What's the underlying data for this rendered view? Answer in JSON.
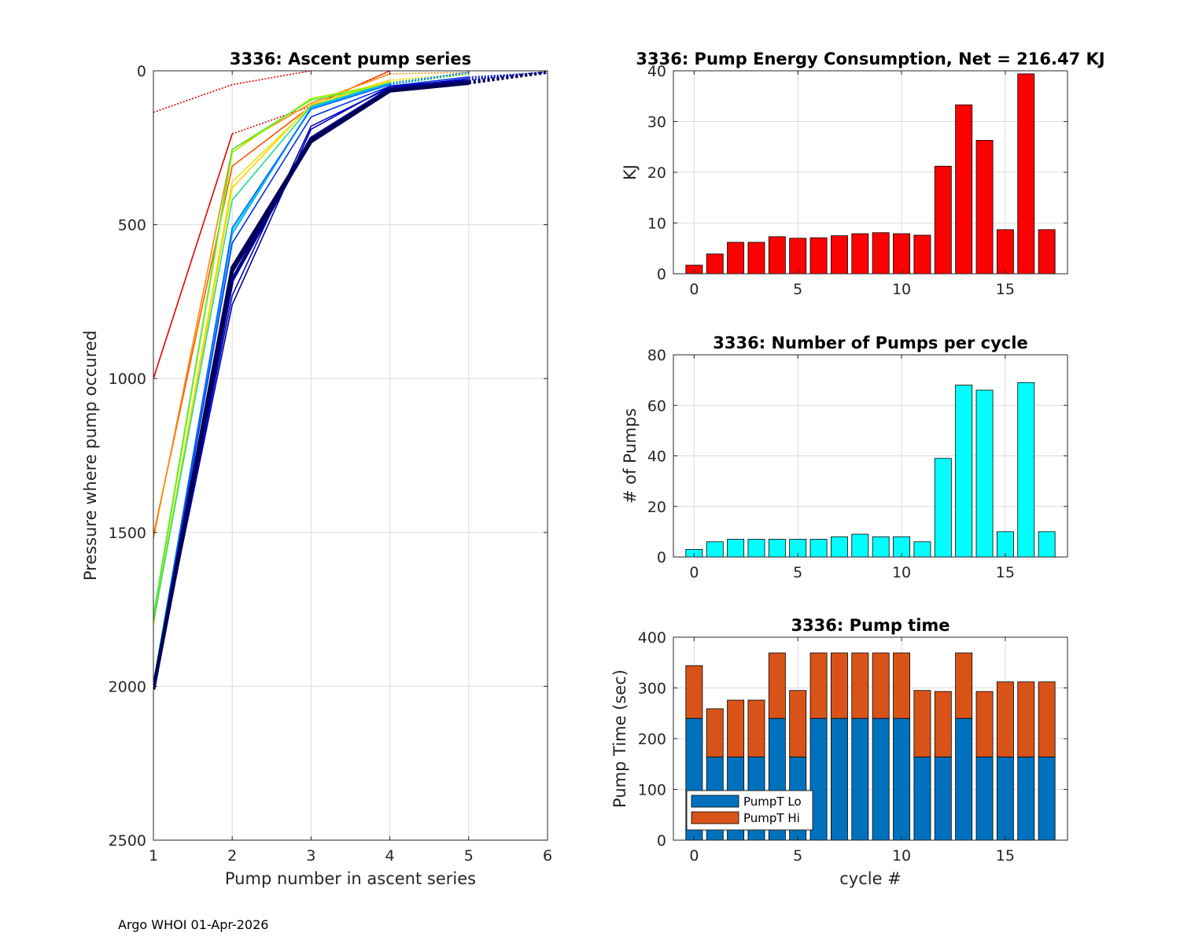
{
  "footer": "Argo WHOI 01-Apr-2026",
  "colors": {
    "energy_bar": "#ff0000",
    "pumps_bar": "#00ffff",
    "pumpt_lo": "#0072bd",
    "pumpt_hi": "#d95319",
    "navy": "#000066"
  },
  "chart_data": [
    {
      "id": "ascent",
      "type": "line",
      "title": "3336: Ascent pump series",
      "xlabel": "Pump number in ascent series",
      "ylabel": "Pressure where pump occured",
      "xlim": [
        1,
        6
      ],
      "ylim": [
        0,
        2500
      ],
      "y_reversed": true,
      "xticks": [
        "1",
        "2",
        "3",
        "4",
        "5",
        "6"
      ],
      "yticks": [
        "0",
        "500",
        "1000",
        "1500",
        "2000",
        "2500"
      ],
      "series": [
        {
          "name": "cycle 0",
          "color": "#e60000",
          "solid": [
            1000,
            205
          ],
          "dotted": [
            205,
            115,
            0
          ]
        },
        {
          "name": "cycle 1",
          "color": "#e60000",
          "solid": [
            135
          ],
          "dotted": [
            135,
            45,
            0
          ]
        },
        {
          "name": "cycle 2",
          "color": "#ff5500",
          "solid": [
            1510,
            310,
            115
          ],
          "dotted": [
            115,
            0
          ]
        },
        {
          "name": "cycle 3",
          "color": "#ff8800",
          "solid": [
            1520,
            255,
            105,
            10
          ],
          "dotted": [
            10,
            5
          ]
        },
        {
          "name": "cycle 4",
          "color": "#ffd000",
          "solid": [
            1800,
            380,
            110,
            30
          ],
          "dotted": [
            30,
            10
          ]
        },
        {
          "name": "cycle 5",
          "color": "#e6e600",
          "solid": [
            1790,
            360,
            115,
            35
          ],
          "dotted": [
            35,
            10
          ]
        },
        {
          "name": "cycle 6",
          "color": "#aaee00",
          "solid": [
            1780,
            265,
            90,
            40
          ],
          "dotted": [
            40,
            10
          ]
        },
        {
          "name": "cycle 7",
          "color": "#55ee33",
          "solid": [
            1770,
            255,
            95,
            45
          ],
          "dotted": [
            45,
            10
          ]
        },
        {
          "name": "cycle 8",
          "color": "#22dd99",
          "solid": [
            1790,
            420,
            115,
            40
          ],
          "dotted": [
            40,
            5
          ]
        },
        {
          "name": "cycle 9",
          "color": "#00dddd",
          "solid": [
            1990,
            520,
            120,
            45
          ],
          "dotted": [
            45,
            5
          ]
        },
        {
          "name": "cycle 10",
          "color": "#00aaff",
          "solid": [
            1995,
            530,
            120,
            40
          ],
          "dotted": [
            40,
            5
          ]
        },
        {
          "name": "cycle 11",
          "color": "#0066ff",
          "solid": [
            2000,
            510,
            125,
            45
          ],
          "dotted": [
            45,
            5
          ]
        },
        {
          "name": "cycle 12",
          "color": "#0033ee",
          "solid": [
            2000,
            560,
            150,
            50,
            20
          ],
          "dotted": [
            20,
            5
          ]
        },
        {
          "name": "cycle 13",
          "color": "#0000cc",
          "solid": [
            2000,
            730,
            180,
            55,
            25
          ],
          "dotted": [
            25,
            3
          ]
        },
        {
          "name": "cycle 14",
          "color": "#0000aa",
          "solid": [
            2000,
            760,
            190,
            50,
            30
          ],
          "dotted": [
            30,
            3
          ]
        },
        {
          "name": "cycle 15",
          "color": "#000088",
          "solid": [
            2010,
            680,
            220,
            60,
            35
          ],
          "dotted": [
            35,
            5
          ]
        },
        {
          "name": "cycle 16",
          "color": "#000066",
          "solid": [
            2010,
            650,
            230,
            65,
            40
          ],
          "dotted": [
            40,
            5
          ]
        },
        {
          "name": "cycle 17",
          "color": "#000055",
          "solid": [
            2010,
            640,
            225,
            65,
            40
          ],
          "dotted": [
            40,
            5
          ]
        }
      ]
    },
    {
      "id": "energy",
      "type": "bar",
      "title": "3336: Pump Energy Consumption,  Net = 216.47 KJ",
      "xlabel": "",
      "ylabel": "KJ",
      "xlim": [
        -1,
        18
      ],
      "ylim": [
        0,
        40
      ],
      "xticks": [
        "0",
        "5",
        "10",
        "15"
      ],
      "yticks": [
        "0",
        "10",
        "20",
        "30",
        "40"
      ],
      "categories": [
        0,
        1,
        2,
        3,
        4,
        5,
        6,
        7,
        8,
        9,
        10,
        11,
        12,
        13,
        14,
        15,
        16,
        17
      ],
      "values": [
        1.7,
        3.9,
        6.2,
        6.2,
        7.3,
        7.0,
        7.1,
        7.5,
        7.9,
        8.1,
        7.9,
        7.6,
        21.2,
        33.3,
        26.3,
        8.7,
        39.4,
        8.7
      ]
    },
    {
      "id": "pumps",
      "type": "bar",
      "title": "3336: Number of Pumps per cycle",
      "xlabel": "",
      "ylabel": "# of Pumps",
      "xlim": [
        -1,
        18
      ],
      "ylim": [
        0,
        80
      ],
      "xticks": [
        "0",
        "5",
        "10",
        "15"
      ],
      "yticks": [
        "0",
        "20",
        "40",
        "60",
        "80"
      ],
      "categories": [
        0,
        1,
        2,
        3,
        4,
        5,
        6,
        7,
        8,
        9,
        10,
        11,
        12,
        13,
        14,
        15,
        16,
        17
      ],
      "values": [
        3,
        6,
        7,
        7,
        7,
        7,
        7,
        8,
        9,
        8,
        8,
        6,
        39,
        68,
        66,
        10,
        69,
        10
      ]
    },
    {
      "id": "time",
      "type": "bar",
      "stacked": true,
      "title": "3336: Pump time",
      "xlabel": "cycle #",
      "ylabel": "Pump Time (sec)",
      "xlim": [
        -1,
        18
      ],
      "ylim": [
        0,
        400
      ],
      "xticks": [
        "0",
        "5",
        "10",
        "15"
      ],
      "yticks": [
        "0",
        "100",
        "200",
        "300",
        "400"
      ],
      "legend": "bottom-left",
      "categories": [
        0,
        1,
        2,
        3,
        4,
        5,
        6,
        7,
        8,
        9,
        10,
        11,
        12,
        13,
        14,
        15,
        16,
        17
      ],
      "series": [
        {
          "name": "PumpT Lo",
          "values": [
            240,
            164,
            164,
            164,
            240,
            164,
            240,
            240,
            240,
            240,
            240,
            164,
            164,
            240,
            164,
            164,
            164,
            164
          ]
        },
        {
          "name": "PumpT Hi",
          "values": [
            104,
            95,
            112,
            112,
            129,
            131,
            129,
            129,
            129,
            129,
            129,
            131,
            129,
            129,
            129,
            148,
            148,
            148
          ]
        }
      ]
    }
  ]
}
